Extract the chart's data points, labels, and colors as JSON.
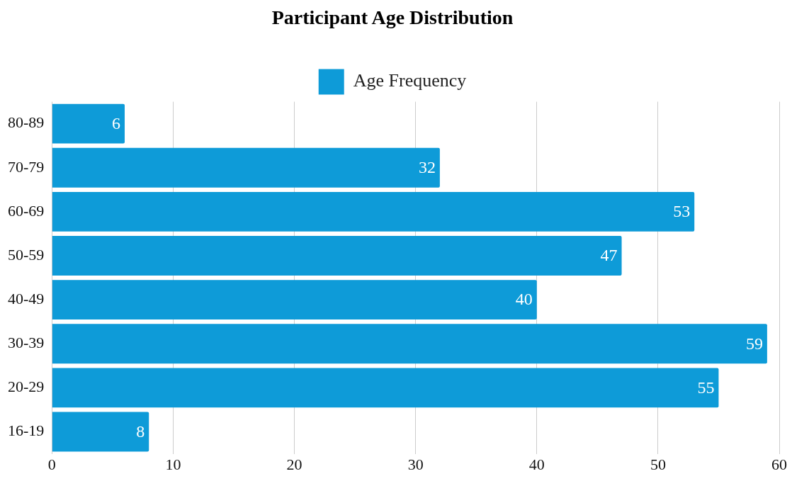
{
  "chart_data": {
    "type": "bar",
    "title": "Participant Age Distribution",
    "orientation": "horizontal",
    "categories": [
      "80-89",
      "70-79",
      "60-69",
      "50-59",
      "40-49",
      "30-39",
      "20-29",
      "16-19"
    ],
    "series": [
      {
        "name": "Age Frequency",
        "color": "#0e9bd8",
        "values": [
          6,
          32,
          53,
          47,
          40,
          59,
          55,
          8
        ]
      }
    ],
    "xlim": [
      0,
      60
    ],
    "xticks": [
      0,
      10,
      20,
      30,
      40,
      50,
      60
    ],
    "grid": "x",
    "legend": "top",
    "data_labels": true
  }
}
